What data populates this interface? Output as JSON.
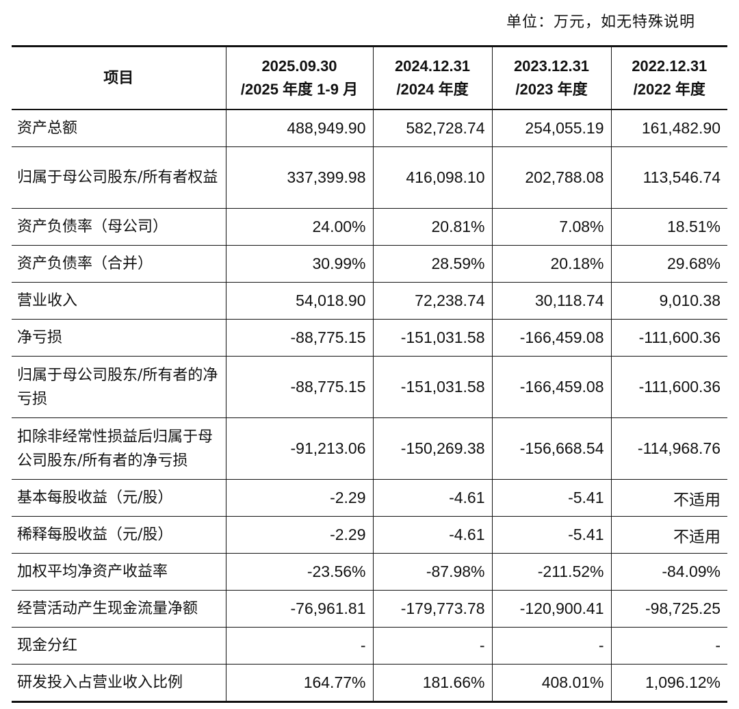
{
  "unit_note": "单位：万元，如无特殊说明",
  "header": {
    "item": "项目",
    "periods": [
      {
        "line1": "2025.09.30",
        "line2": "/2025 年度 1-9 月"
      },
      {
        "line1": "2024.12.31",
        "line2": "/2024 年度"
      },
      {
        "line1": "2023.12.31",
        "line2": "/2023 年度"
      },
      {
        "line1": "2022.12.31",
        "line2": "/2022 年度"
      }
    ]
  },
  "rows": [
    {
      "label": "资产总额",
      "values": [
        "488,949.90",
        "582,728.74",
        "254,055.19",
        "161,482.90"
      ]
    },
    {
      "label": "归属于母公司股东/所有者权益",
      "values": [
        "337,399.98",
        "416,098.10",
        "202,788.08",
        "113,546.74"
      ]
    },
    {
      "label": "资产负债率（母公司）",
      "values": [
        "24.00%",
        "20.81%",
        "7.08%",
        "18.51%"
      ]
    },
    {
      "label": "资产负债率（合并）",
      "values": [
        "30.99%",
        "28.59%",
        "20.18%",
        "29.68%"
      ]
    },
    {
      "label": "营业收入",
      "values": [
        "54,018.90",
        "72,238.74",
        "30,118.74",
        "9,010.38"
      ]
    },
    {
      "label": "净亏损",
      "values": [
        "-88,775.15",
        "-151,031.58",
        "-166,459.08",
        "-111,600.36"
      ]
    },
    {
      "label": "归属于母公司股东/所有者的净亏损",
      "values": [
        "-88,775.15",
        "-151,031.58",
        "-166,459.08",
        "-111,600.36"
      ]
    },
    {
      "label": "扣除非经常性损益后归属于母公司股东/所有者的净亏损",
      "values": [
        "-91,213.06",
        "-150,269.38",
        "-156,668.54",
        "-114,968.76"
      ]
    },
    {
      "label": "基本每股收益（元/股）",
      "values": [
        "-2.29",
        "-4.61",
        "-5.41",
        "不适用"
      ]
    },
    {
      "label": "稀释每股收益（元/股）",
      "values": [
        "-2.29",
        "-4.61",
        "-5.41",
        "不适用"
      ]
    },
    {
      "label": "加权平均净资产收益率",
      "values": [
        "-23.56%",
        "-87.98%",
        "-211.52%",
        "-84.09%"
      ]
    },
    {
      "label": "经营活动产生现金流量净额",
      "values": [
        "-76,961.81",
        "-179,773.78",
        "-120,900.41",
        "-98,725.25"
      ]
    },
    {
      "label": "现金分红",
      "values": [
        "-",
        "-",
        "-",
        "-"
      ]
    },
    {
      "label": "研发投入占营业收入比例",
      "values": [
        "164.77%",
        "181.66%",
        "408.01%",
        "1,096.12%"
      ]
    }
  ]
}
